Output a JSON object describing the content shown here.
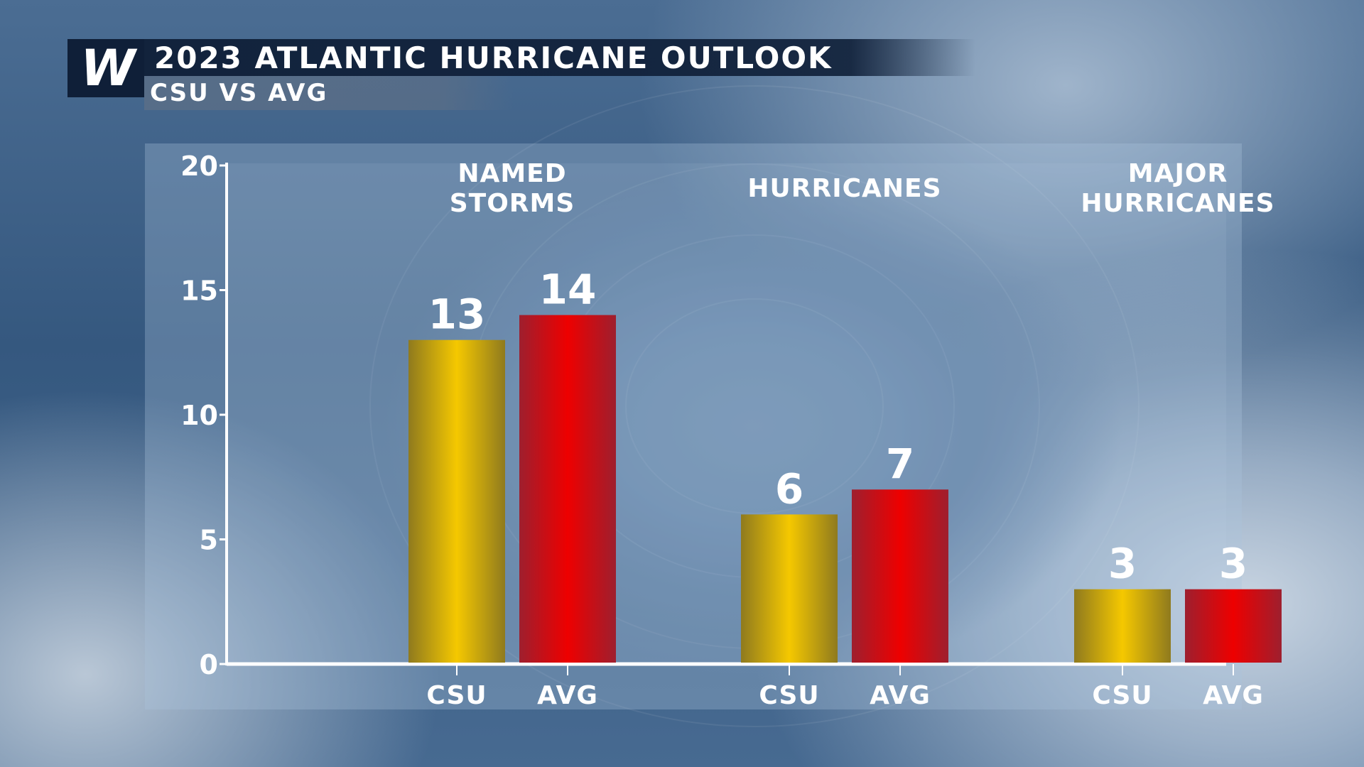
{
  "header": {
    "logo_text": "W",
    "title": "2023 ATLANTIC HURRICANE OUTLOOK",
    "subtitle": "CSU VS AVG"
  },
  "colors": {
    "csu": "#f5c800",
    "avg": "#ee0000",
    "axis": "#ffffff",
    "title_bar": "#0f1f38"
  },
  "chart_data": {
    "type": "bar",
    "title": "2023 ATLANTIC HURRICANE OUTLOOK",
    "subtitle": "CSU VS AVG",
    "ylim": [
      0,
      20
    ],
    "yticks": [
      "0",
      "5",
      "10",
      "15",
      "20"
    ],
    "grid": false,
    "groups": [
      {
        "label_lines": [
          "NAMED",
          "STORMS"
        ],
        "bars": [
          {
            "label": "CSU",
            "value": 13,
            "value_label": "13",
            "series": "csu"
          },
          {
            "label": "AVG",
            "value": 14,
            "value_label": "14",
            "series": "avg"
          }
        ]
      },
      {
        "label_lines": [
          "HURRICANES"
        ],
        "bars": [
          {
            "label": "CSU",
            "value": 6,
            "value_label": "6",
            "series": "csu"
          },
          {
            "label": "AVG",
            "value": 7,
            "value_label": "7",
            "series": "avg"
          }
        ]
      },
      {
        "label_lines": [
          "MAJOR",
          "HURRICANES"
        ],
        "bars": [
          {
            "label": "CSU",
            "value": 3,
            "value_label": "3",
            "series": "csu"
          },
          {
            "label": "AVG",
            "value": 3,
            "value_label": "3",
            "series": "avg"
          }
        ]
      }
    ]
  }
}
